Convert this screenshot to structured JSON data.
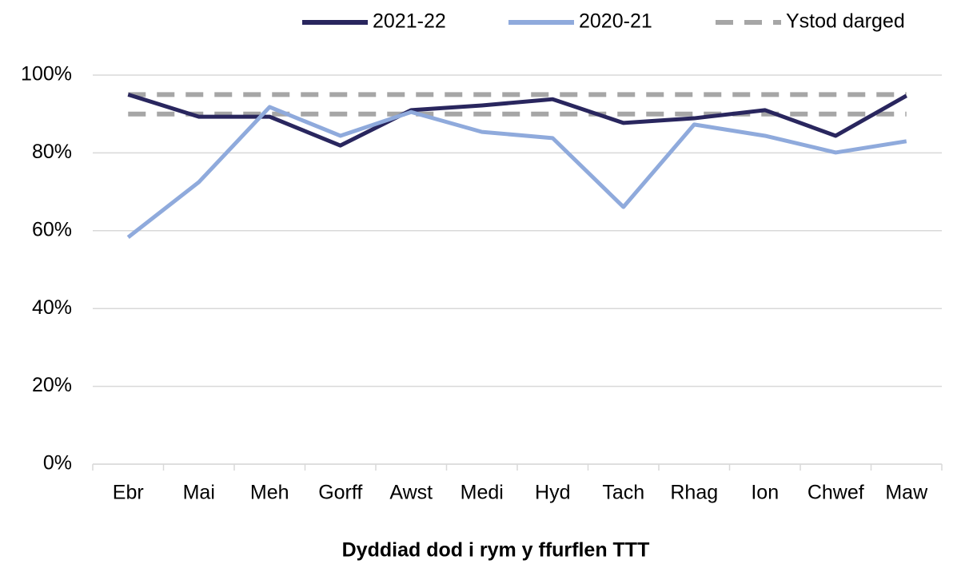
{
  "chart_data": {
    "type": "line",
    "x_label": "Dyddiad dod i rym y ffurflen TTT",
    "categories": [
      "Ebr",
      "Mai",
      "Meh",
      "Gorff",
      "Awst",
      "Medi",
      "Hyd",
      "Tach",
      "Rhag",
      "Ion",
      "Chwef",
      "Maw"
    ],
    "series": [
      {
        "name": "2021-22",
        "color": "#29265e",
        "values": [
          95,
          89.3,
          89.3,
          81.9,
          91,
          92.2,
          93.8,
          87.7,
          88.9,
          91,
          84.4,
          94.7
        ]
      },
      {
        "name": "2020-21",
        "color": "#8faadc",
        "values": [
          58.3,
          72.5,
          91.8,
          84.4,
          90.5,
          85.4,
          83.8,
          66.1,
          87.3,
          84.4,
          80.1,
          83
        ]
      }
    ],
    "target_range": {
      "name": "Ystod darged",
      "color": "#a6a6a6",
      "values": [
        95,
        90
      ]
    },
    "ylim": [
      0,
      100
    ],
    "yticks": [
      {
        "value": 0,
        "label": "0%"
      },
      {
        "value": 20,
        "label": "20%"
      },
      {
        "value": 40,
        "label": "40%"
      },
      {
        "value": 60,
        "label": "60%"
      },
      {
        "value": 80,
        "label": "80%"
      },
      {
        "value": 100,
        "label": "100%"
      }
    ],
    "grid": true,
    "legend": "top"
  }
}
